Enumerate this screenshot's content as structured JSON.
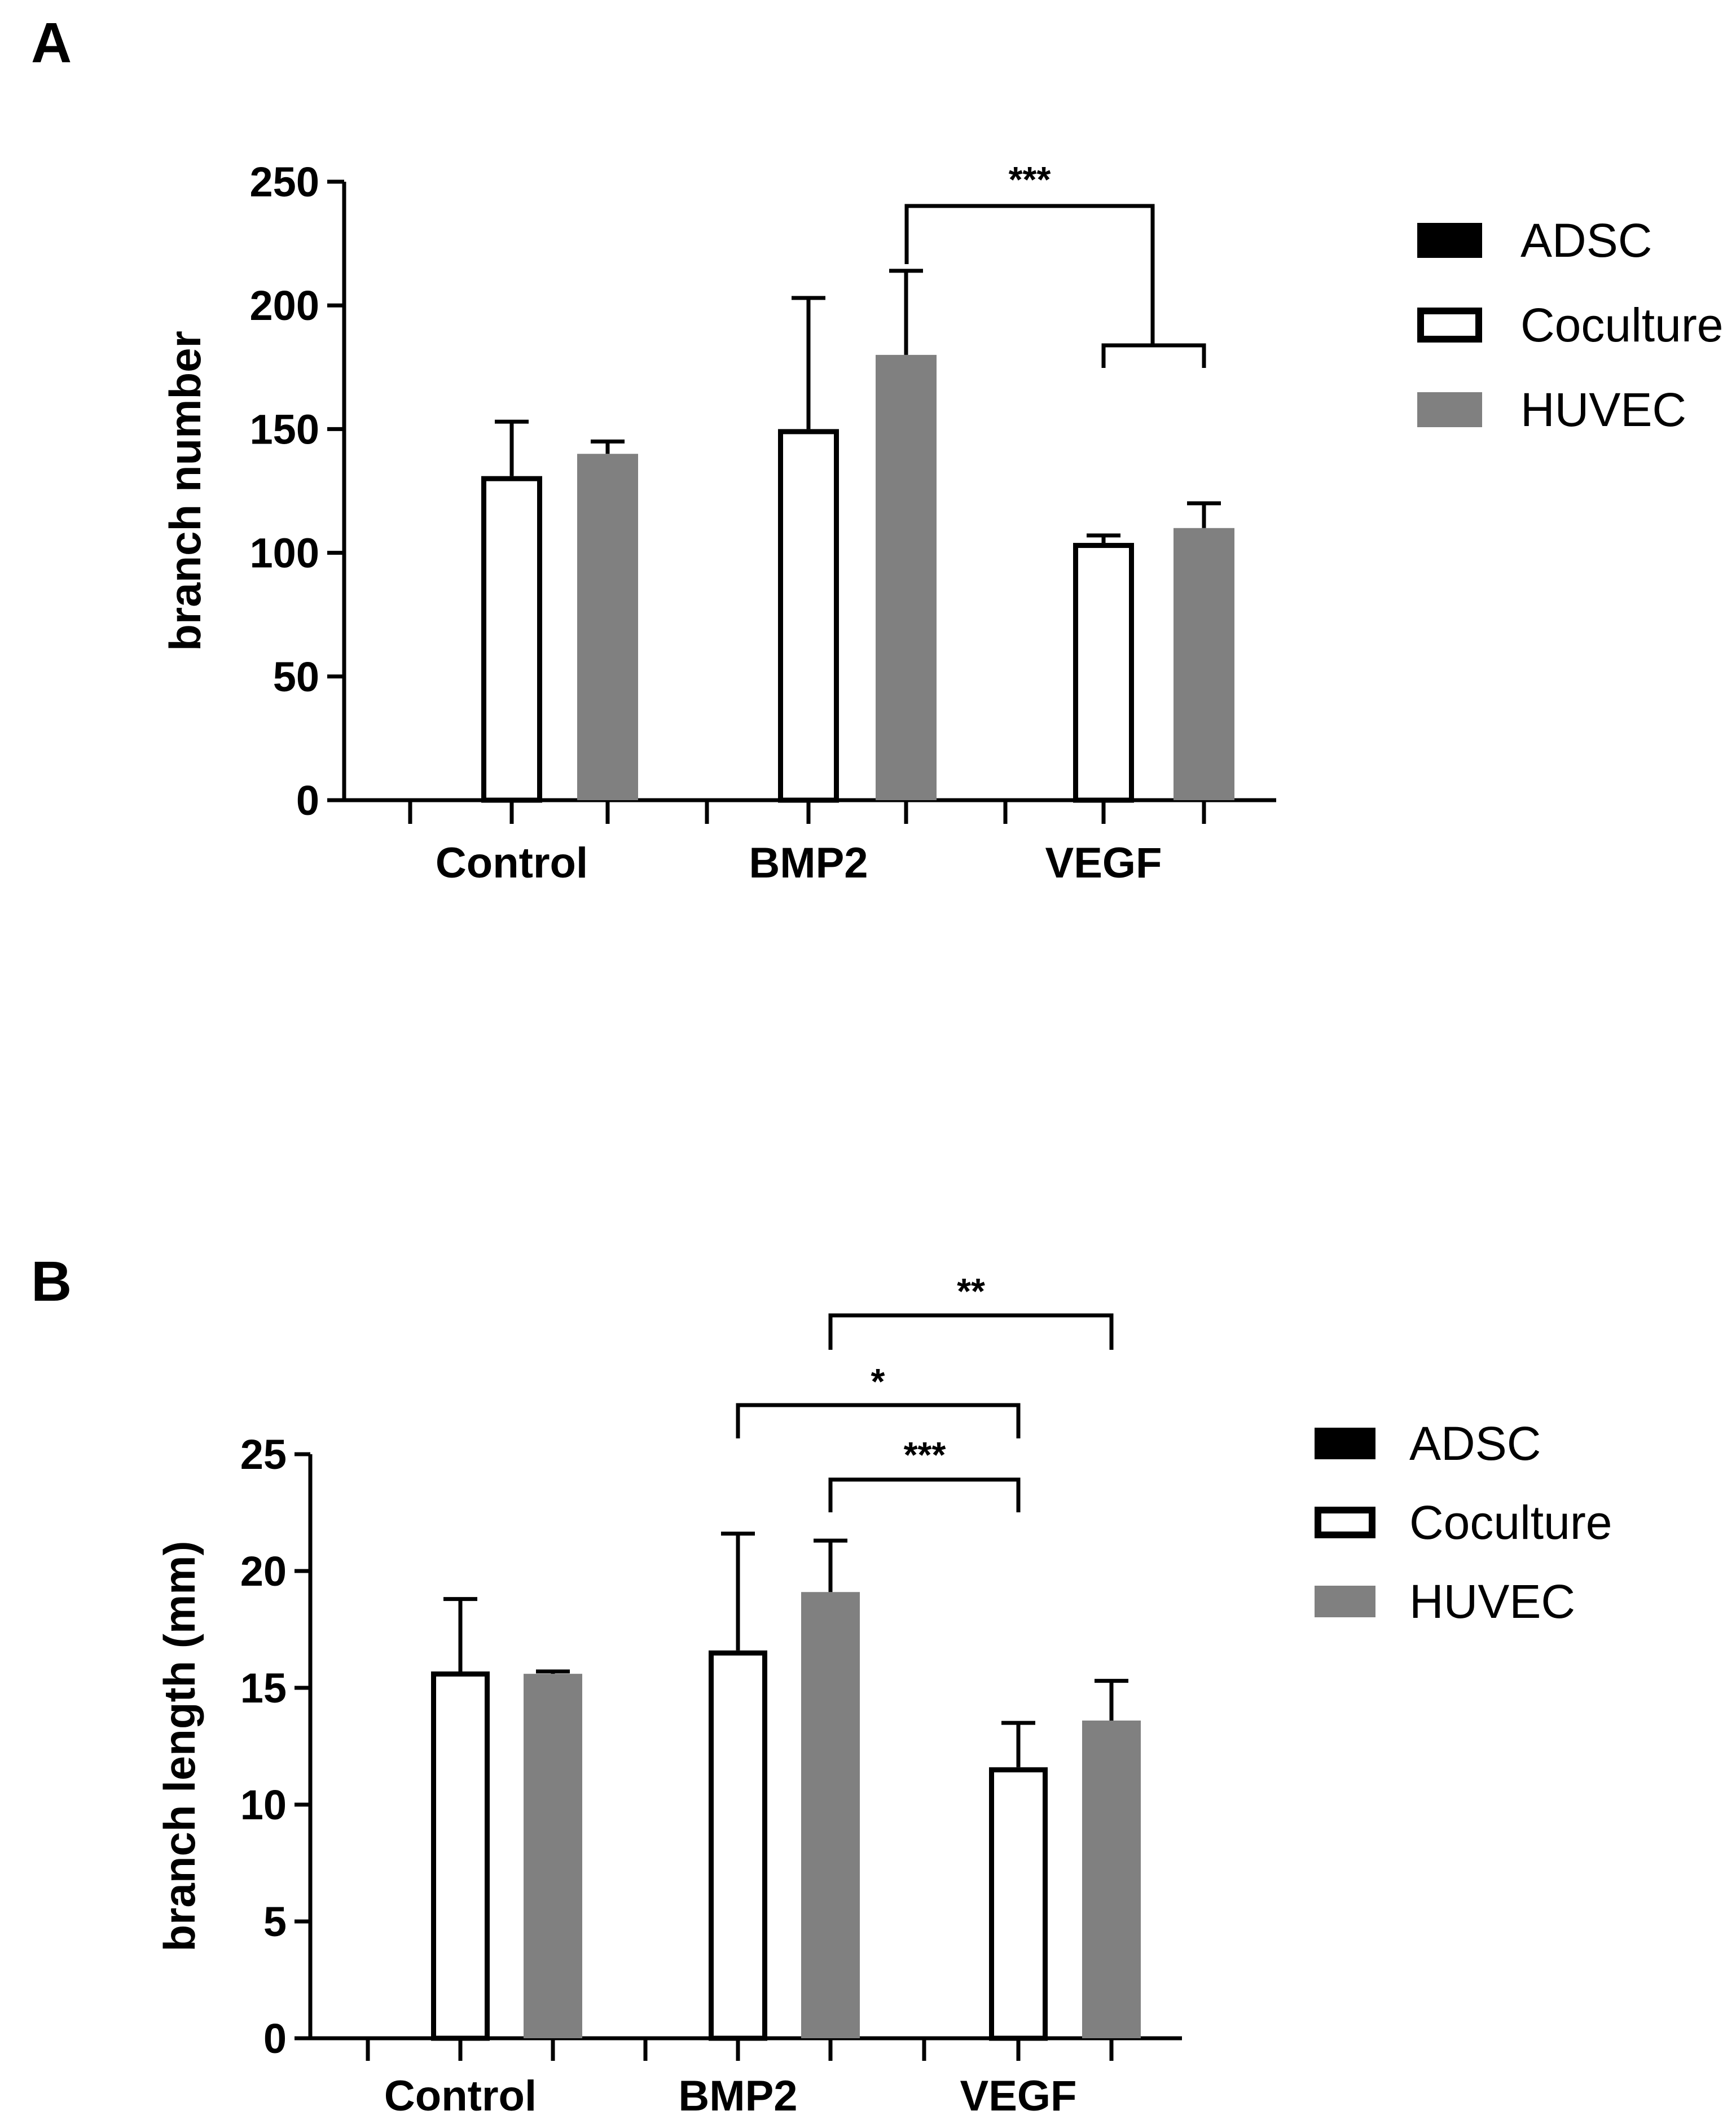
{
  "chart_data": [
    {
      "panel": "A",
      "type": "bar",
      "title": "",
      "xlabel": "",
      "ylabel": "branch number",
      "ylim": [
        0,
        250
      ],
      "yticks": [
        0,
        50,
        100,
        150,
        200,
        250
      ],
      "categories": [
        "Control",
        "BMP2",
        "VEGF"
      ],
      "series": [
        {
          "name": "ADSC",
          "style": "solid-black",
          "values": [
            0,
            0,
            0
          ],
          "errors": [
            0,
            0,
            0
          ]
        },
        {
          "name": "Coculture",
          "style": "hollow",
          "values": [
            131,
            150,
            104
          ],
          "errors": [
            22,
            53,
            3
          ]
        },
        {
          "name": "HUVEC",
          "style": "solid-gray",
          "values": [
            140,
            180,
            110
          ],
          "errors": [
            5,
            34,
            10
          ]
        }
      ],
      "significance": [
        {
          "label": "***",
          "from": {
            "category": "BMP2",
            "series": "HUVEC"
          },
          "to": {
            "category": "VEGF",
            "series_span": [
              "Coculture",
              "HUVEC"
            ]
          }
        }
      ],
      "legend_position": "right",
      "grid": false
    },
    {
      "panel": "B",
      "type": "bar",
      "title": "",
      "xlabel": "",
      "ylabel": "branch length (mm)",
      "ylim": [
        0,
        25
      ],
      "yticks": [
        0,
        5,
        10,
        15,
        20,
        25
      ],
      "categories": [
        "Control",
        "BMP2",
        "VEGF"
      ],
      "series": [
        {
          "name": "ADSC",
          "style": "solid-black",
          "values": [
            0,
            0,
            0
          ],
          "errors": [
            0,
            0,
            0
          ]
        },
        {
          "name": "Coculture",
          "style": "hollow",
          "values": [
            15.7,
            16.6,
            11.6
          ],
          "errors": [
            3.1,
            5.0,
            1.9
          ]
        },
        {
          "name": "HUVEC",
          "style": "solid-gray",
          "values": [
            15.6,
            19.1,
            13.6
          ],
          "errors": [
            0.1,
            2.2,
            1.7
          ]
        }
      ],
      "significance": [
        {
          "label": "**",
          "from": {
            "category": "BMP2",
            "series": "HUVEC"
          },
          "to": {
            "category": "VEGF",
            "series": "HUVEC"
          }
        },
        {
          "label": "*",
          "from": {
            "category": "BMP2",
            "series": "Coculture"
          },
          "to": {
            "category": "VEGF",
            "series": "Coculture"
          }
        },
        {
          "label": "***",
          "from": {
            "category": "BMP2",
            "series": "HUVEC"
          },
          "to": {
            "category": "VEGF",
            "series": "Coculture"
          }
        }
      ],
      "legend_position": "right",
      "grid": false
    }
  ],
  "colors": {
    "axis": "#000000",
    "hollow_fill": "#ffffff",
    "gray_fill": "#808080",
    "black_fill": "#000000"
  }
}
